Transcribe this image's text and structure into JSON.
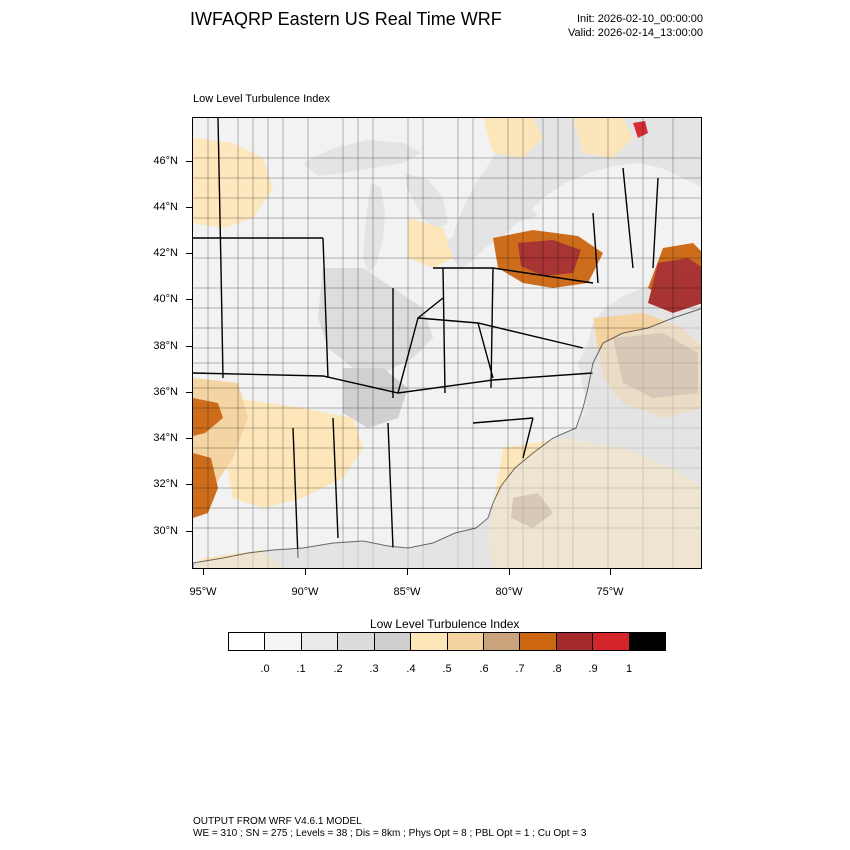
{
  "header": {
    "title": "IWFAQRP Eastern US Real Time WRF",
    "init": "Init: 2026-02-10_00:00:00",
    "valid": "Valid: 2026-02-14_13:00:00"
  },
  "map": {
    "panel_title": "Low Level Turbulence Index",
    "lat_labels": [
      "46°N",
      "44°N",
      "42°N",
      "40°N",
      "38°N",
      "36°N",
      "34°N",
      "32°N",
      "30°N"
    ],
    "lon_labels": [
      "95°W",
      "90°W",
      "85°W",
      "80°W",
      "75°W"
    ],
    "colors": {
      "water": "#e4e4e4",
      "land": "#f2f2f2"
    }
  },
  "colorbar": {
    "title": "Low Level Turbulence Index",
    "colors": [
      "#ffffff",
      "#f5f5f5",
      "#eaeaea",
      "#dcdcdc",
      "#cfcfcf",
      "#fde6b8",
      "#f5d39e",
      "#c9a37c",
      "#cc6611",
      "#a52a2a",
      "#d4252b",
      "#000000"
    ],
    "labels": [
      ".0",
      ".1",
      ".2",
      ".3",
      ".4",
      ".5",
      ".6",
      ".7",
      ".8",
      ".9",
      "1"
    ]
  },
  "footer": {
    "line1": "OUTPUT FROM WRF V4.6.1 MODEL",
    "line2": "WE = 310 ; SN = 275 ; Levels = 38 ; Dis = 8km ; Phys Opt = 8 ; PBL Opt = 1 ; Cu Opt = 3"
  }
}
